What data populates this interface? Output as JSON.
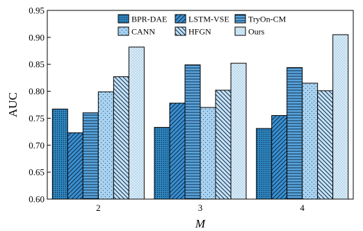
{
  "chart_data": {
    "type": "bar",
    "xlabel": "M",
    "ylabel": "AUC",
    "ylim": [
      0.6,
      0.95
    ],
    "yticks": [
      "0.60",
      "0.65",
      "0.70",
      "0.75",
      "0.80",
      "0.85",
      "0.90",
      "0.95"
    ],
    "categories": [
      "2",
      "3",
      "4"
    ],
    "legend_position": "top-center",
    "grid": false,
    "series": [
      {
        "name": "BPR-DAE",
        "values": [
          0.767,
          0.733,
          0.731
        ],
        "color": "#2e86c1",
        "pattern": "dots-dense"
      },
      {
        "name": "LSTM-VSE",
        "values": [
          0.723,
          0.778,
          0.755
        ],
        "color": "#3b8fd0",
        "pattern": "diag-up"
      },
      {
        "name": "TryOn-CM",
        "values": [
          0.76,
          0.849,
          0.844
        ],
        "color": "#5ba4dc",
        "pattern": "horizontal"
      },
      {
        "name": "CANN",
        "values": [
          0.799,
          0.77,
          0.815
        ],
        "color": "#a9d2f0",
        "pattern": "dots-sparse"
      },
      {
        "name": "HFGN",
        "values": [
          0.827,
          0.802,
          0.801
        ],
        "color": "#c7e1f5",
        "pattern": "diag-down"
      },
      {
        "name": "Ours",
        "values": [
          0.882,
          0.852,
          0.905
        ],
        "color": "#d8ecf9",
        "pattern": "dots-fine"
      }
    ]
  }
}
